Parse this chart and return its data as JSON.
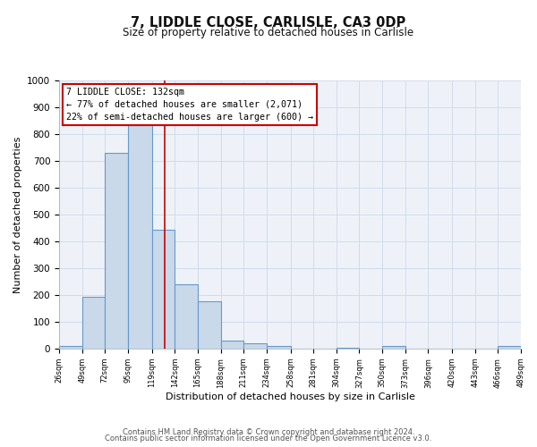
{
  "title": "7, LIDDLE CLOSE, CARLISLE, CA3 0DP",
  "subtitle": "Size of property relative to detached houses in Carlisle",
  "xlabel": "Distribution of detached houses by size in Carlisle",
  "ylabel": "Number of detached properties",
  "bin_edges": [
    26,
    49,
    72,
    95,
    119,
    142,
    165,
    188,
    211,
    234,
    258,
    281,
    304,
    327,
    350,
    373,
    396,
    420,
    443,
    466,
    489
  ],
  "bin_labels": [
    "26sqm",
    "49sqm",
    "72sqm",
    "95sqm",
    "119sqm",
    "142sqm",
    "165sqm",
    "188sqm",
    "211sqm",
    "234sqm",
    "258sqm",
    "281sqm",
    "304sqm",
    "327sqm",
    "350sqm",
    "373sqm",
    "396sqm",
    "420sqm",
    "443sqm",
    "466sqm",
    "489sqm"
  ],
  "bar_heights": [
    10,
    195,
    730,
    835,
    445,
    240,
    178,
    30,
    20,
    10,
    0,
    0,
    5,
    0,
    10,
    0,
    0,
    0,
    0,
    10
  ],
  "bar_color": "#c9d9ea",
  "bar_edge_color": "#6699cc",
  "vline_x": 132,
  "vline_color": "#cc0000",
  "annotation_line1": "7 LIDDLE CLOSE: 132sqm",
  "annotation_line2": "← 77% of detached houses are smaller (2,071)",
  "annotation_line3": "22% of semi-detached houses are larger (600) →",
  "annotation_box_color": "#cc0000",
  "ylim": [
    0,
    1000
  ],
  "yticks": [
    0,
    100,
    200,
    300,
    400,
    500,
    600,
    700,
    800,
    900,
    1000
  ],
  "grid_color": "#d0dcea",
  "bg_color": "#eef2f8",
  "footer_line1": "Contains HM Land Registry data © Crown copyright and database right 2024.",
  "footer_line2": "Contains public sector information licensed under the Open Government Licence v3.0."
}
